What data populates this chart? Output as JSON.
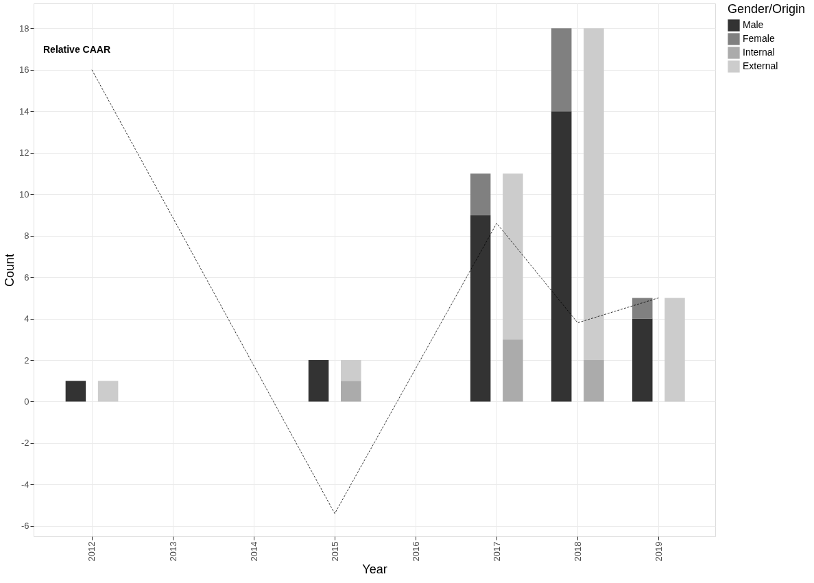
{
  "chart_data": {
    "type": "bar",
    "xlabel": "Year",
    "ylabel": "Count",
    "legend_title": "Gender/Origin",
    "legend": "right",
    "xlim": [
      2011.28,
      2019.7
    ],
    "xticks": [
      2012,
      2013,
      2014,
      2015,
      2016,
      2017,
      2018,
      2019
    ],
    "ylim": [
      -6.5,
      19.2
    ],
    "yticks": [
      -6,
      -4,
      -2,
      0,
      2,
      4,
      6,
      8,
      10,
      12,
      14,
      16,
      18
    ],
    "grid": true,
    "series": [
      {
        "name": "Male",
        "color": "#333333",
        "x": [
          2011.8,
          2014.8,
          2016.8,
          2017.8,
          2018.8
        ],
        "base": [
          0,
          0,
          0,
          0,
          0
        ],
        "values": [
          1,
          2,
          9,
          14,
          4
        ]
      },
      {
        "name": "Female",
        "color": "#808080",
        "x": [
          2016.8,
          2017.8,
          2018.8
        ],
        "base": [
          9,
          14,
          4
        ],
        "values": [
          2,
          4,
          1
        ]
      },
      {
        "name": "Internal",
        "color": "#ababab",
        "x": [
          2015.2,
          2017.2,
          2018.2
        ],
        "base": [
          0,
          0,
          0
        ],
        "values": [
          1,
          3,
          2
        ]
      },
      {
        "name": "External",
        "color": "#cccccc",
        "x": [
          2012.2,
          2015.2,
          2017.2,
          2018.2,
          2019.2
        ],
        "base": [
          0,
          1,
          3,
          2,
          0
        ],
        "values": [
          1,
          1,
          8,
          16,
          5
        ]
      },
      {
        "type": "line",
        "color": "#000000",
        "line_style": "dashed",
        "x": [
          2012,
          2015,
          2017,
          2018,
          2019
        ],
        "values": [
          16.0,
          -5.4,
          8.6,
          3.8,
          5.0
        ]
      }
    ],
    "annotations": [
      "Relative CAAR"
    ]
  }
}
